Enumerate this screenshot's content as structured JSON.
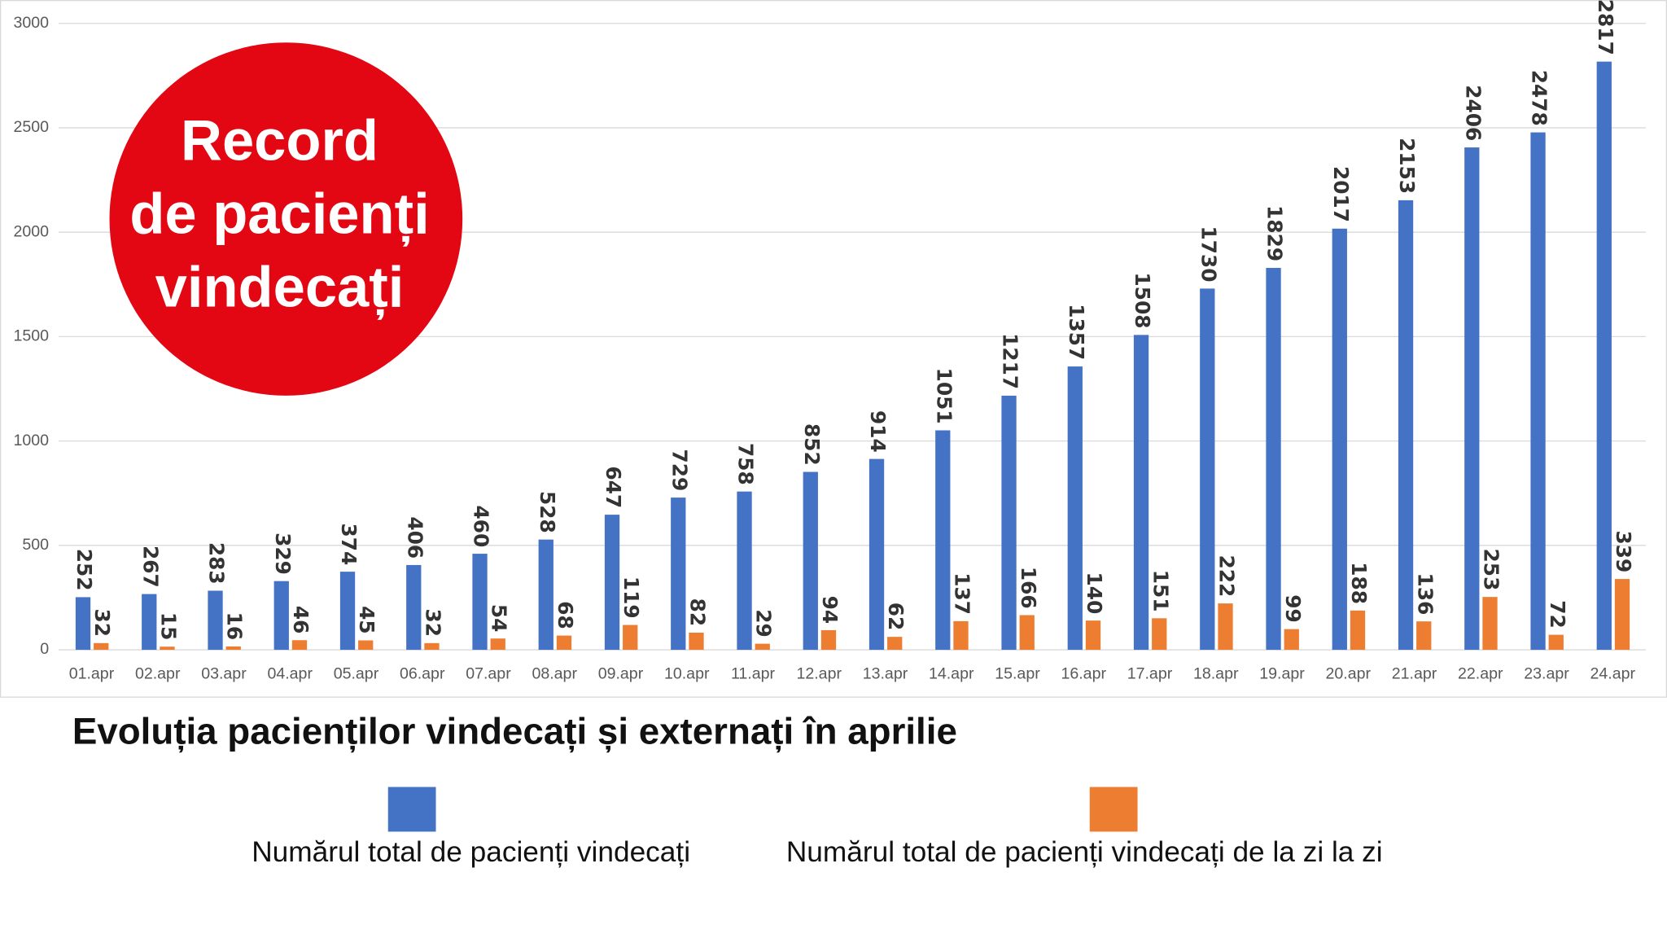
{
  "chart_data": {
    "type": "bar",
    "title": "Evoluția pacienților vindecați și externați în aprilie",
    "badge": [
      "Record",
      "de pacienți",
      "vindecați"
    ],
    "categories": [
      "01.apr",
      "02.apr",
      "03.apr",
      "04.apr",
      "05.apr",
      "06.apr",
      "07.apr",
      "08.apr",
      "09.apr",
      "10.apr",
      "11.apr",
      "12.apr",
      "13.apr",
      "14.apr",
      "15.apr",
      "16.apr",
      "17.apr",
      "18.apr",
      "19.apr",
      "20.apr",
      "21.apr",
      "22.apr",
      "23.apr",
      "24.apr"
    ],
    "series": [
      {
        "name": "Numărul total de pacienți vindecați",
        "color": "#4472c4",
        "values": [
          252,
          267,
          283,
          329,
          374,
          406,
          460,
          528,
          647,
          729,
          758,
          852,
          914,
          1051,
          1217,
          1357,
          1508,
          1730,
          1829,
          2017,
          2153,
          2406,
          2478,
          2817
        ]
      },
      {
        "name": "Numărul total de pacienți vindecați de la zi la zi",
        "color": "#ed7d31",
        "values": [
          32,
          15,
          16,
          46,
          45,
          32,
          54,
          68,
          119,
          82,
          29,
          94,
          62,
          137,
          166,
          140,
          151,
          222,
          99,
          188,
          136,
          253,
          72,
          339
        ]
      }
    ],
    "ylim": [
      0,
      3000
    ],
    "yticks": [
      0,
      500,
      1000,
      1500,
      2000,
      2500,
      3000
    ],
    "grid": true
  }
}
